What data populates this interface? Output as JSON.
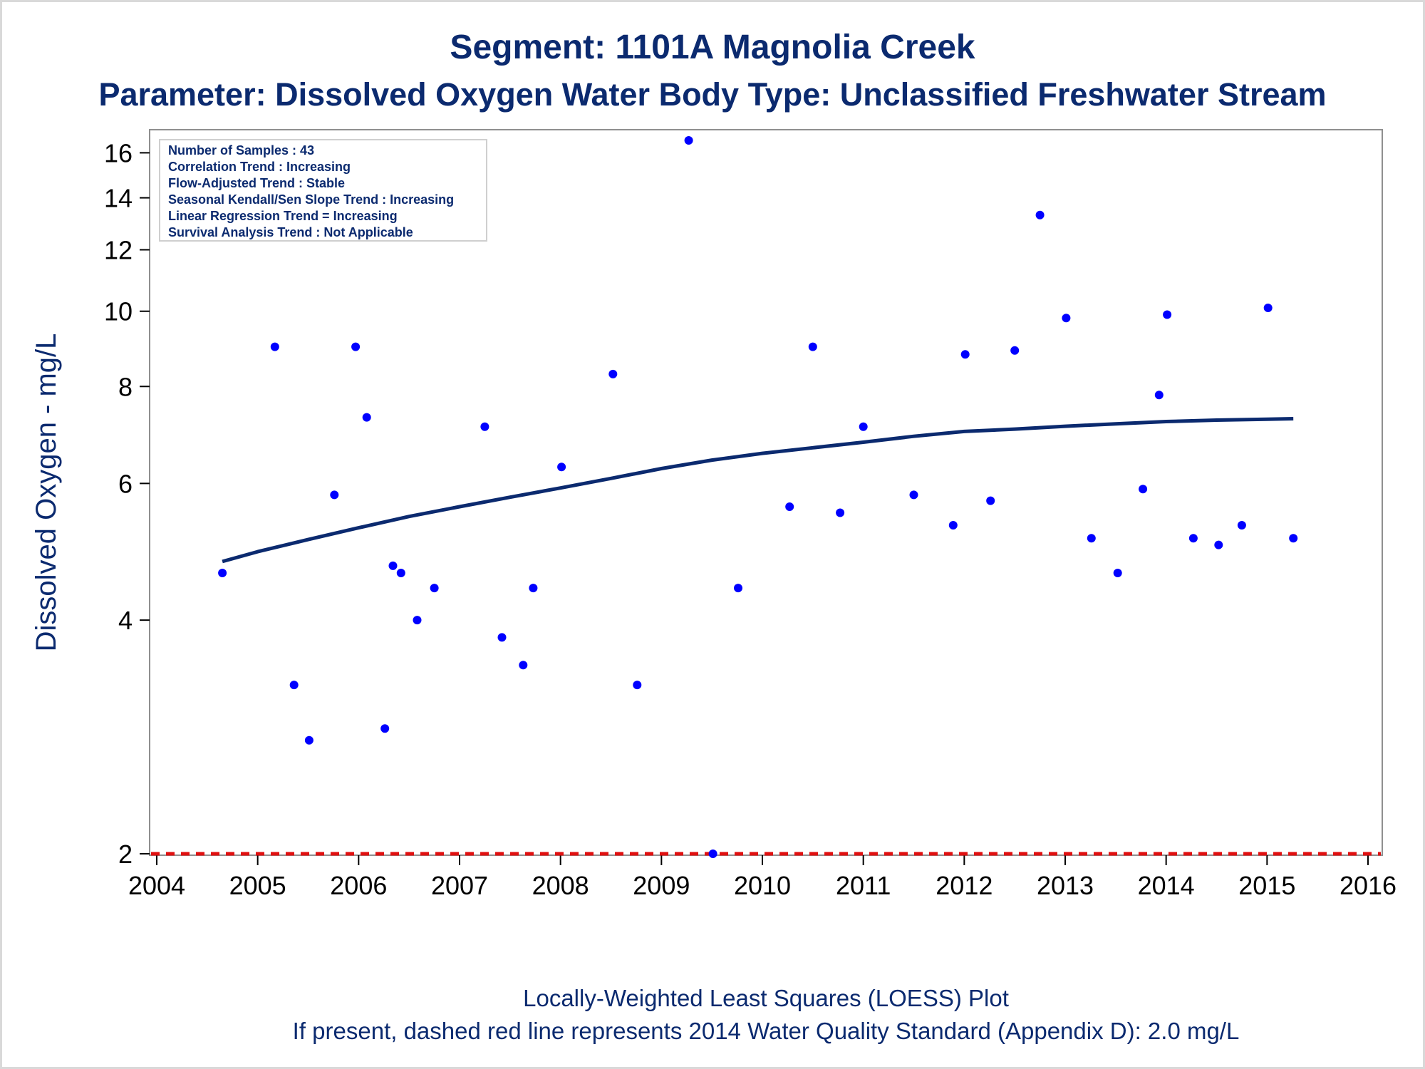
{
  "chart_data": {
    "type": "scatter",
    "title": "Segment: 1101A  Magnolia Creek",
    "subtitle": "Parameter: Dissolved Oxygen   Water Body Type: Unclassified Freshwater Stream",
    "ylabel": "Dissolved Oxygen - mg/L",
    "xlabel": "",
    "y_scale": "log",
    "xlim": [
      2004,
      2016
    ],
    "ylim": [
      2,
      16.6
    ],
    "x_ticks": [
      "2004",
      "2005",
      "2006",
      "2007",
      "2008",
      "2009",
      "2010",
      "2011",
      "2012",
      "2013",
      "2014",
      "2015",
      "2016"
    ],
    "y_ticks": [
      2,
      4,
      6,
      8,
      10,
      12,
      14,
      16
    ],
    "grid": false,
    "series": [
      {
        "type": "scatter",
        "color": "#0000ff",
        "points": [
          [
            2004.65,
            4.6
          ],
          [
            2005.17,
            9.0
          ],
          [
            2005.36,
            3.3
          ],
          [
            2005.51,
            2.8
          ],
          [
            2005.76,
            5.8
          ],
          [
            2005.97,
            9.0
          ],
          [
            2006.08,
            7.3
          ],
          [
            2006.26,
            2.9
          ],
          [
            2006.34,
            4.7
          ],
          [
            2006.42,
            4.6
          ],
          [
            2006.58,
            4.0
          ],
          [
            2006.75,
            4.4
          ],
          [
            2007.25,
            7.1
          ],
          [
            2007.42,
            3.8
          ],
          [
            2007.63,
            3.5
          ],
          [
            2007.73,
            4.4
          ],
          [
            2008.01,
            6.3
          ],
          [
            2008.52,
            8.3
          ],
          [
            2008.76,
            3.3
          ],
          [
            2009.27,
            16.6
          ],
          [
            2009.51,
            2.0
          ],
          [
            2009.76,
            4.4
          ],
          [
            2010.27,
            5.6
          ],
          [
            2010.5,
            9.0
          ],
          [
            2010.77,
            5.5
          ],
          [
            2011.0,
            7.1
          ],
          [
            2011.5,
            5.8
          ],
          [
            2011.89,
            5.3
          ],
          [
            2012.01,
            8.8
          ],
          [
            2012.26,
            5.7
          ],
          [
            2012.5,
            8.9
          ],
          [
            2012.75,
            13.3
          ],
          [
            2013.01,
            9.8
          ],
          [
            2013.26,
            5.1
          ],
          [
            2013.52,
            4.6
          ],
          [
            2013.77,
            5.9
          ],
          [
            2013.93,
            7.8
          ],
          [
            2014.01,
            9.9
          ],
          [
            2014.27,
            5.1
          ],
          [
            2014.52,
            5.0
          ],
          [
            2014.75,
            5.3
          ],
          [
            2015.01,
            10.1
          ],
          [
            2015.26,
            5.1
          ]
        ]
      },
      {
        "type": "line",
        "color": "#0b2a6f",
        "points": [
          [
            2004.65,
            4.76
          ],
          [
            2005.0,
            4.9
          ],
          [
            2005.5,
            5.08
          ],
          [
            2006.0,
            5.26
          ],
          [
            2006.5,
            5.44
          ],
          [
            2007.0,
            5.6
          ],
          [
            2007.5,
            5.76
          ],
          [
            2008.0,
            5.92
          ],
          [
            2008.5,
            6.09
          ],
          [
            2009.0,
            6.27
          ],
          [
            2009.5,
            6.43
          ],
          [
            2010.0,
            6.56
          ],
          [
            2010.5,
            6.67
          ],
          [
            2011.0,
            6.78
          ],
          [
            2011.5,
            6.9
          ],
          [
            2012.0,
            7.0
          ],
          [
            2012.5,
            7.05
          ],
          [
            2013.0,
            7.11
          ],
          [
            2013.5,
            7.16
          ],
          [
            2014.0,
            7.21
          ],
          [
            2014.5,
            7.24
          ],
          [
            2015.0,
            7.26
          ],
          [
            2015.26,
            7.27
          ]
        ]
      },
      {
        "type": "hline",
        "color": "#e01010",
        "style": "dashed",
        "y": 2.0
      }
    ],
    "annotations": [
      "Number of Samples : 43",
      "Correlation Trend : Increasing",
      "Flow-Adjusted Trend : Stable",
      "Seasonal Kendall/Sen Slope Trend : Increasing",
      "Linear Regression Trend = Increasing",
      "Survival Analysis Trend : Not Applicable"
    ],
    "footnotes": [
      "Locally-Weighted Least Squares (LOESS) Plot",
      "If present, dashed red line represents 2014 Water Quality Standard (Appendix D): 2.0 mg/L"
    ]
  }
}
